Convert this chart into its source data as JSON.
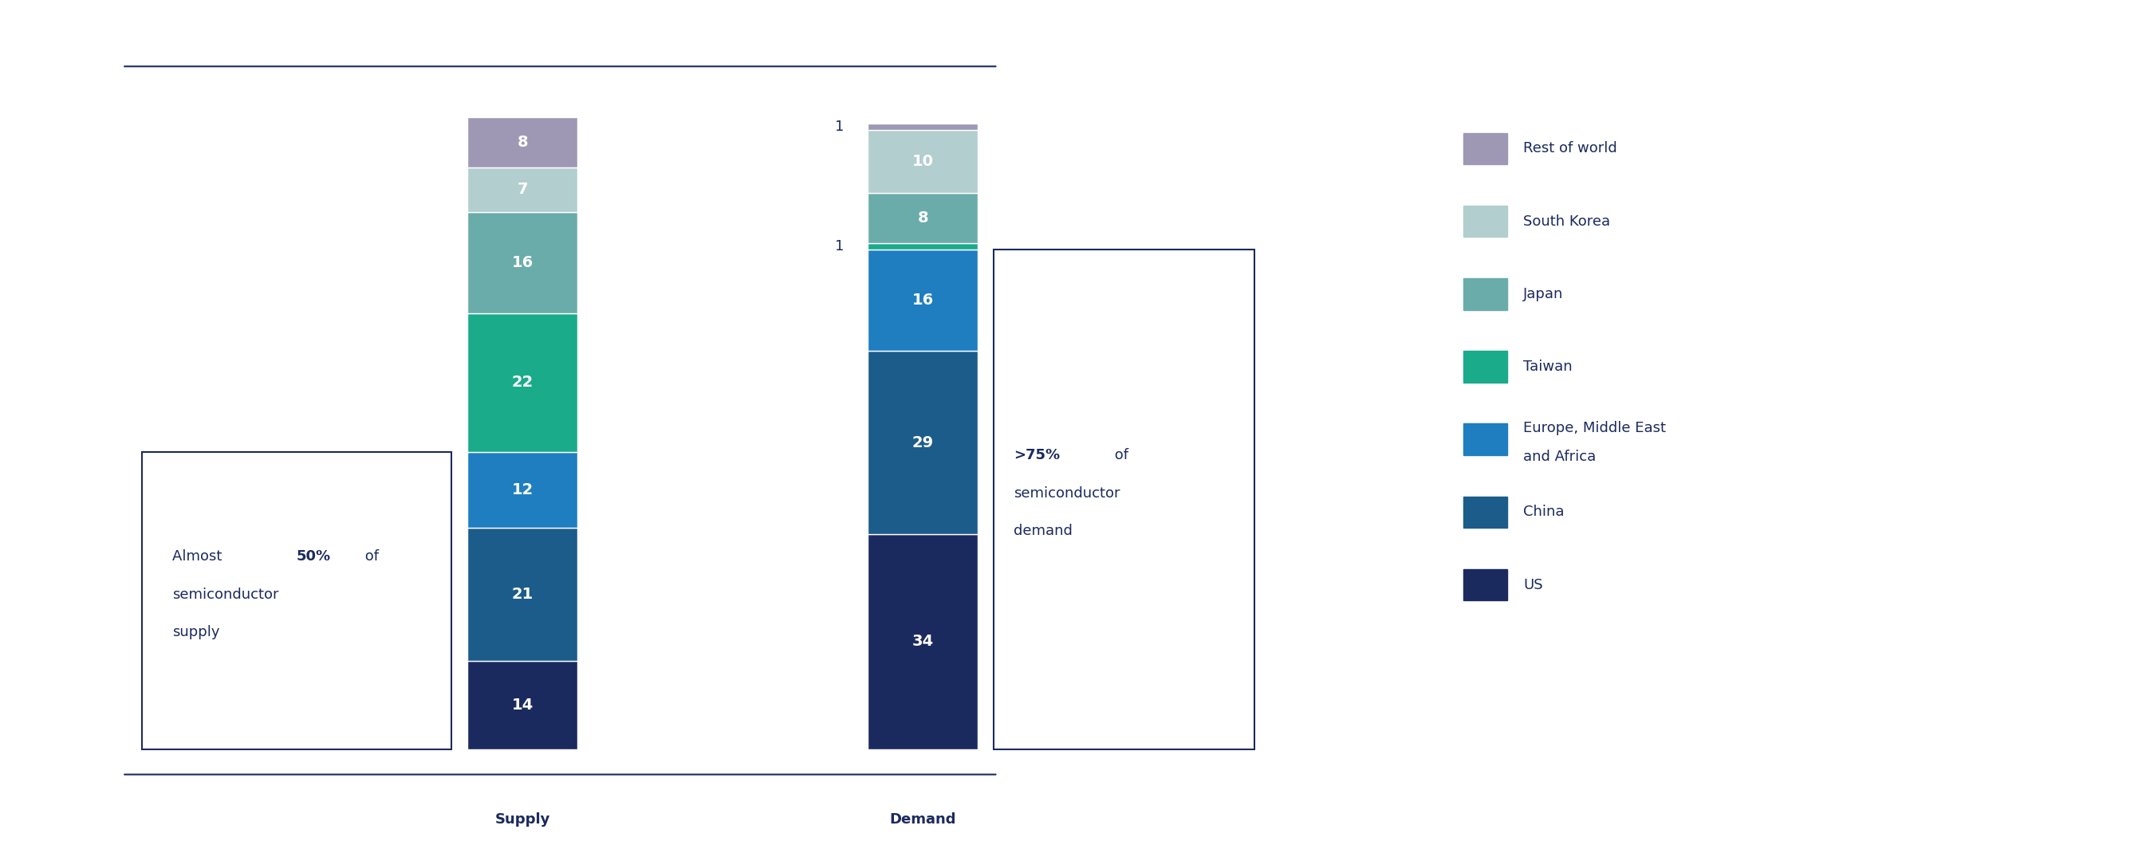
{
  "supply_values": [
    14,
    21,
    12,
    22,
    16,
    7,
    8
  ],
  "demand_values": [
    34,
    29,
    16,
    1,
    8,
    10,
    1
  ],
  "colors": [
    "#1b2a5e",
    "#1b5c8a",
    "#1e7ec0",
    "#1aab8a",
    "#6aacaa",
    "#b2cece",
    "#9e98b4"
  ],
  "legend_labels": [
    "Rest of world",
    "South Korea",
    "Japan",
    "Taiwan",
    "Europe, Middle East\nand Africa",
    "China",
    "US"
  ],
  "legend_colors": [
    "#9e98b4",
    "#b2cece",
    "#6aacaa",
    "#1aab8a",
    "#1e7ec0",
    "#1b5c8a",
    "#1b2a5e"
  ],
  "xlabel_supply": "Supply",
  "xlabel_demand": "Demand",
  "background_color": "#ffffff",
  "text_color": "#1b2a5e",
  "line_color": "#1b2a5e",
  "value_fontsize": 14,
  "tick_fontsize": 13,
  "annotation_fontsize": 13,
  "legend_fontsize": 13
}
